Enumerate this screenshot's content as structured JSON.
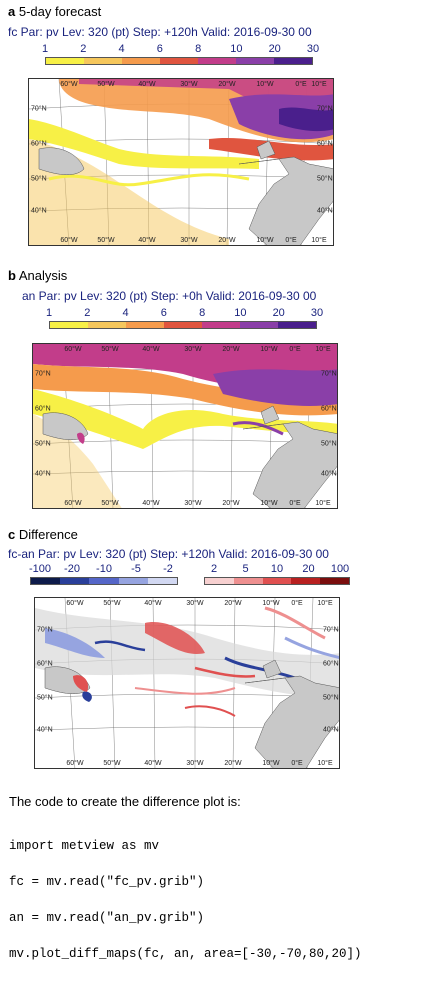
{
  "panels": [
    {
      "letter": "a",
      "label": "5-day forecast",
      "map_title": "fc Par: pv Lev: 320 (pt) Step: +120h Valid: 2016-09-30 00",
      "colorbar": {
        "ticks": [
          "1",
          "2",
          "4",
          "6",
          "8",
          "10",
          "20",
          "30"
        ],
        "colors": [
          "#f7f046",
          "#f6c75c",
          "#f59b4c",
          "#e0553f",
          "#c23d8a",
          "#8a3fa8",
          "#4a1f8c"
        ]
      },
      "lon_labels": [
        "60°W",
        "50°W",
        "40°W",
        "30°W",
        "20°W",
        "10°W",
        "0°E",
        "10°E"
      ],
      "lat_labels": [
        "70°N",
        "60°N",
        "50°N",
        "40°N"
      ]
    },
    {
      "letter": "b",
      "label": "Analysis",
      "map_title": "an Par: pv Lev: 320 (pt) Step: +0h Valid: 2016-09-30 00",
      "colorbar": {
        "ticks": [
          "1",
          "2",
          "4",
          "6",
          "8",
          "10",
          "20",
          "30"
        ],
        "colors": [
          "#f7f046",
          "#f6c75c",
          "#f59b4c",
          "#e0553f",
          "#c23d8a",
          "#8a3fa8",
          "#4a1f8c"
        ]
      },
      "lon_labels": [
        "60°W",
        "50°W",
        "40°W",
        "30°W",
        "20°W",
        "10°W",
        "0°E",
        "10°E"
      ],
      "lat_labels": [
        "70°N",
        "60°N",
        "50°N",
        "40°N"
      ]
    },
    {
      "letter": "c",
      "label": "Difference",
      "map_title": "fc-an Par: pv Lev: 320 (pt) Step: +120h Valid: 2016-09-30 00",
      "neg_ticks": [
        "-100",
        "-20",
        "-10",
        "-5",
        "-2"
      ],
      "pos_ticks": [
        "2",
        "5",
        "10",
        "20",
        "100"
      ],
      "neg_colors": [
        "#0d1b4a",
        "#2a3f9a",
        "#5566c8",
        "#96a4e0",
        "#d2d8f2"
      ],
      "pos_colors": [
        "#f7d0d0",
        "#ee9090",
        "#e05050",
        "#b82020",
        "#7a0d0d"
      ],
      "lon_labels": [
        "60°W",
        "50°W",
        "40°W",
        "30°W",
        "20°W",
        "10°W",
        "0°E",
        "10°E"
      ],
      "lat_labels": [
        "70°N",
        "60°N",
        "50°N",
        "40°N"
      ]
    }
  ],
  "code_heading": "The code to create the difference plot is:",
  "code_lines": [
    "import metview as mv",
    "fc = mv.read(\"fc_pv.grib\")",
    "an = mv.read(\"an_pv.grib\")",
    "mv.plot_diff_maps(fc, an, area=[-30,-70,80,20])"
  ],
  "colors": {
    "title_text": "#1a237e",
    "land": "#c8c8c8",
    "frame": "#333333"
  }
}
